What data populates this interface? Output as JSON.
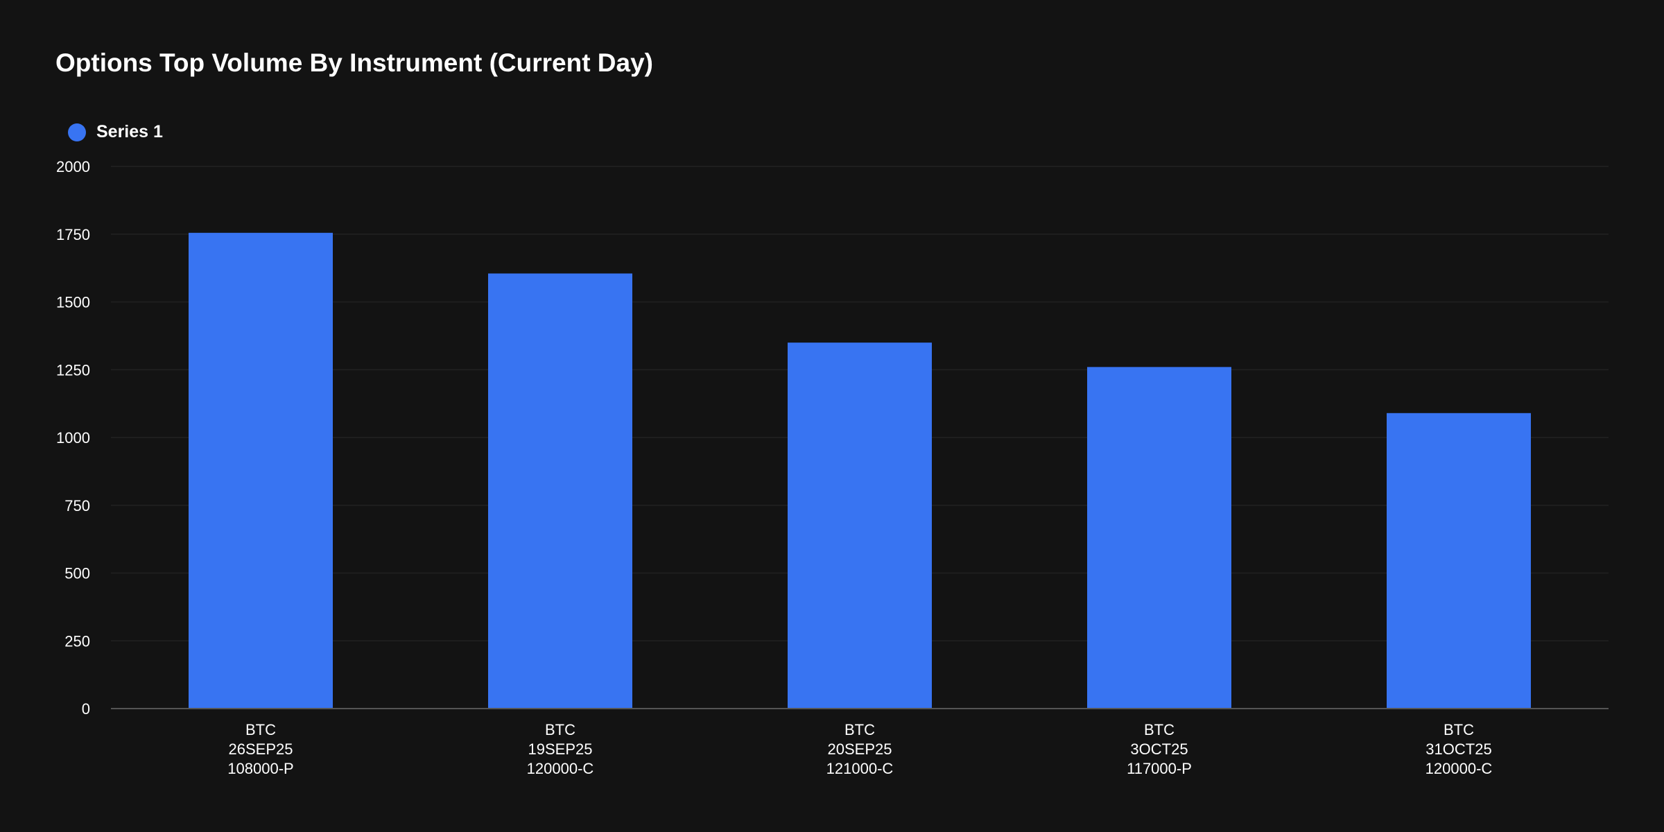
{
  "colors": {
    "background": "#131313",
    "bar": "#3874f2",
    "grid": "#222222",
    "axis": "#555555",
    "text": "#ffffff"
  },
  "chart_data": {
    "type": "bar",
    "title": "Options Top Volume By Instrument (Current Day)",
    "xlabel": "",
    "ylabel": "",
    "legend_position": "top-left",
    "grid": true,
    "ylim": [
      0,
      2000
    ],
    "yticks": [
      "0",
      "250",
      "500",
      "750",
      "1000",
      "1250",
      "1500",
      "1750",
      "2000"
    ],
    "categories": [
      [
        "BTC",
        "26SEP25",
        "108000-P"
      ],
      [
        "BTC",
        "19SEP25",
        "120000-C"
      ],
      [
        "BTC",
        "20SEP25",
        "121000-C"
      ],
      [
        "BTC",
        "3OCT25",
        "117000-P"
      ],
      [
        "BTC",
        "31OCT25",
        "120000-C"
      ]
    ],
    "series": [
      {
        "name": "Series 1",
        "color": "#3874f2",
        "values": [
          1755,
          1605,
          1350,
          1260,
          1090
        ]
      }
    ]
  }
}
